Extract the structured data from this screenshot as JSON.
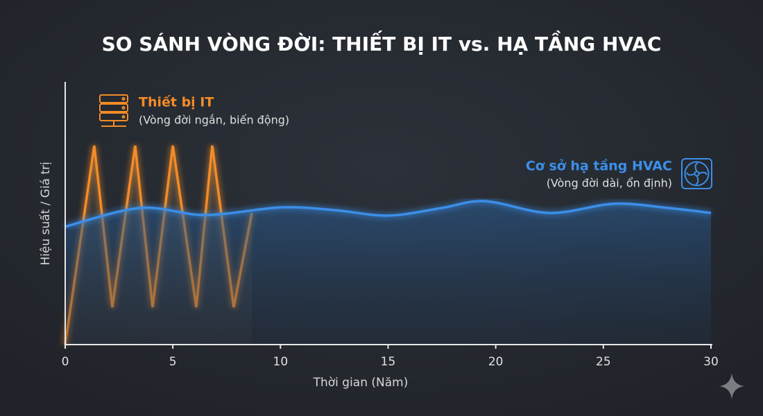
{
  "chart_data": {
    "type": "line",
    "title": "SO SÁNH VÒNG ĐỜI: THIẾT BỊ IT vs. HẠ TẦNG HVAC",
    "xlabel": "Thời gian (Năm)",
    "ylabel": "Hiệu suất / Giá trị",
    "xlim": [
      0,
      30
    ],
    "xticks": [
      0,
      5,
      10,
      15,
      20,
      25,
      30
    ],
    "ylim": [
      0,
      100
    ],
    "series": [
      {
        "name": "Thiết bị IT",
        "color": "#f28c28",
        "x": [
          0,
          1.35,
          2.19,
          3.25,
          4.06,
          5.0,
          6.09,
          6.83,
          7.83,
          8.67
        ],
        "values": [
          0,
          75.7,
          14.2,
          75.7,
          14.2,
          75.7,
          14.2,
          75.7,
          14.2,
          50.1
        ]
      },
      {
        "name": "Cơ sở hạ tầng HVAC",
        "color": "#3b8fe8",
        "x": [
          0,
          3.5,
          6.5,
          10,
          12.5,
          15,
          17.5,
          19.5,
          22.5,
          25.5,
          28,
          30
        ],
        "values": [
          44.9,
          52,
          49.3,
          52.2,
          51.2,
          49.1,
          52,
          54.6,
          50.1,
          53.6,
          52,
          50.1
        ]
      }
    ],
    "annotations": [
      "(Vòng đời ngắn, biến động)",
      "(Vòng đời dài, ổn định)"
    ]
  }
}
